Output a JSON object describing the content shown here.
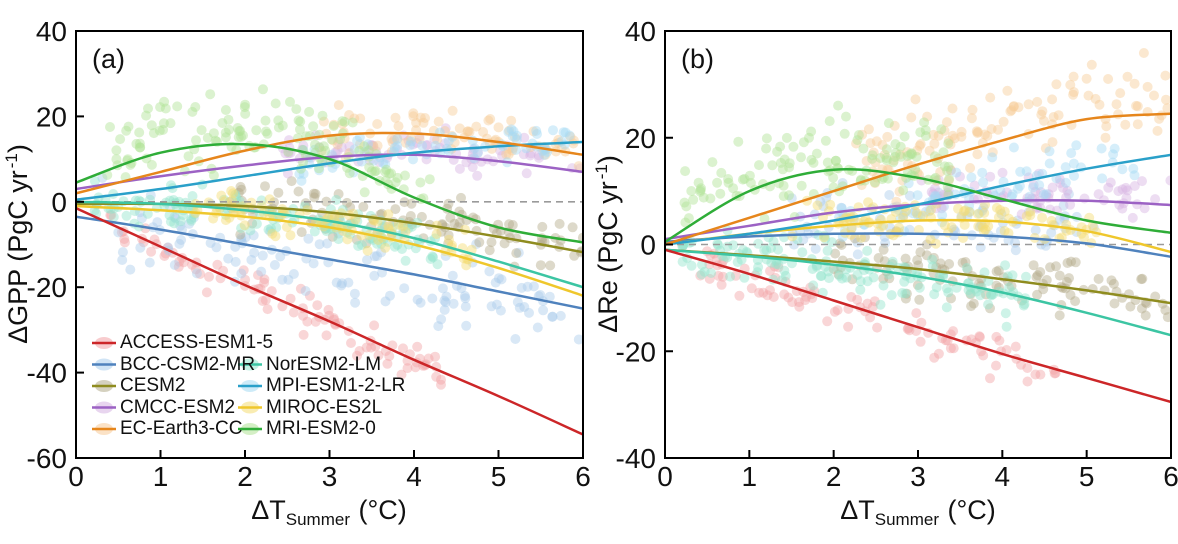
{
  "figure": {
    "background": "#ffffff",
    "axis_color": "#000000",
    "zero_line_color": "#9a9a9a",
    "text_color": "#111111"
  },
  "legend": {
    "items": [
      {
        "label": "ACCESS-ESM1-5",
        "series": 0,
        "col": 0,
        "row": 0
      },
      {
        "label": "BCC-CSM2-MR",
        "series": 1,
        "col": 0,
        "row": 1
      },
      {
        "label": "CESM2",
        "series": 2,
        "col": 0,
        "row": 2
      },
      {
        "label": "CMCC-ESM2",
        "series": 3,
        "col": 0,
        "row": 3
      },
      {
        "label": "EC-Earth3-CC",
        "series": 4,
        "col": 0,
        "row": 4
      },
      {
        "label": "NorESM2-LM",
        "series": 5,
        "col": 1,
        "row": 1
      },
      {
        "label": "MPI-ESM1-2-LR",
        "series": 6,
        "col": 1,
        "row": 2
      },
      {
        "label": "MIROC-ES2L",
        "series": 7,
        "col": 1,
        "row": 3
      },
      {
        "label": "MRI-ESM2-0",
        "series": 8,
        "col": 1,
        "row": 4
      }
    ]
  },
  "chart_data": [
    {
      "type": "scatter",
      "panel_label": "(a)",
      "ylabel": {
        "pre": "ΔGPP (PgC yr",
        "sup": "-1",
        "post": ")"
      },
      "xlabel": {
        "pre": "ΔT",
        "sub": "Summer",
        "post": " (°C)"
      },
      "xlim": [
        0,
        6
      ],
      "ylim": [
        -60,
        40
      ],
      "x_fit": [
        0,
        1,
        2,
        3,
        4,
        5,
        6
      ],
      "xtick_labels": [
        "0",
        "1",
        "2",
        "3",
        "4",
        "5",
        "6"
      ],
      "ytick_labels": [
        "40",
        "20",
        "0",
        "-20",
        "-40",
        "-60"
      ],
      "zero_line": true,
      "series": [
        {
          "name": "ACCESS-ESM1-5",
          "line_color": "#cc2628",
          "dot_color": "#f2a3a6",
          "fit_y": [
            -1.5,
            -10.5,
            -19.5,
            -28,
            -37,
            -45.5,
            -54.5
          ],
          "scatter": {
            "x_min": 0.4,
            "x_max": 4.4,
            "n": 95,
            "spread": 2.2,
            "offset": -0.5
          }
        },
        {
          "name": "BCC-CSM2-MR",
          "line_color": "#4f82bd",
          "dot_color": "#aacdec",
          "fit_y": [
            -3.5,
            -6.5,
            -10,
            -13.5,
            -17,
            -21,
            -25
          ],
          "scatter": {
            "x_min": 0.3,
            "x_max": 6,
            "n": 125,
            "spread": 4.6,
            "offset": -1
          }
        },
        {
          "name": "CESM2",
          "line_color": "#8f8c1f",
          "dot_color": "#b3ab8a",
          "fit_y": [
            -0.5,
            -0.5,
            -1,
            -2.5,
            -5,
            -8.2,
            -11.8
          ],
          "scatter": {
            "x_min": 1.8,
            "x_max": 6,
            "n": 110,
            "spread": 3,
            "offset": 0.5
          }
        },
        {
          "name": "CMCC-ESM2",
          "line_color": "#9c62c4",
          "dot_color": "#d6b3e2",
          "fit_y": [
            3,
            6,
            8.5,
            10.5,
            11,
            9.5,
            7
          ],
          "scatter": {
            "x_min": 2.4,
            "x_max": 6,
            "n": 75,
            "spread": 2.2,
            "offset": 1.5
          }
        },
        {
          "name": "EC-Earth3-CC",
          "line_color": "#e6861c",
          "dot_color": "#f7cb97",
          "fit_y": [
            2,
            7,
            12,
            15.5,
            16,
            14,
            11
          ],
          "scatter": {
            "x_min": 2.9,
            "x_max": 6,
            "n": 85,
            "spread": 2.8,
            "offset": 1
          }
        },
        {
          "name": "NorESM2-LM",
          "line_color": "#3cc5a3",
          "dot_color": "#93e5cd",
          "fit_y": [
            0,
            -0.5,
            -2,
            -4.5,
            -8.5,
            -14,
            -20
          ],
          "scatter": {
            "x_min": 0.2,
            "x_max": 4.3,
            "n": 140,
            "spread": 2.4,
            "offset": -0.5
          }
        },
        {
          "name": "MPI-ESM1-2-LR",
          "line_color": "#2aa0c9",
          "dot_color": "#a5daf3",
          "fit_y": [
            0.5,
            3,
            6,
            9,
            11.5,
            13,
            14
          ],
          "scatter": {
            "x_min": 2.6,
            "x_max": 6,
            "n": 70,
            "spread": 2.4,
            "offset": 1
          }
        },
        {
          "name": "MIROC-ES2L",
          "line_color": "#efc72c",
          "dot_color": "#f4dc72",
          "fit_y": [
            -1,
            -2,
            -3.5,
            -6,
            -10,
            -15.5,
            -22
          ],
          "scatter": {
            "x_min": 1.4,
            "x_max": 4.7,
            "n": 90,
            "spread": 2.2,
            "offset": 1.5
          }
        },
        {
          "name": "MRI-ESM2-0",
          "line_color": "#2fad38",
          "dot_color": "#b0e295",
          "fit_y": [
            4.5,
            11.5,
            13.5,
            10,
            1,
            -6,
            -9.5
          ],
          "scatter": {
            "x_min": 0.3,
            "x_max": 4.2,
            "n": 140,
            "spread": 4.2,
            "offset": 3.5
          }
        }
      ]
    },
    {
      "type": "scatter",
      "panel_label": "(b)",
      "ylabel": {
        "pre": "ΔRe (PgC yr",
        "sup": "-1",
        "post": ")"
      },
      "xlabel": {
        "pre": "ΔT",
        "sub": "Summer",
        "post": " (°C)"
      },
      "xlim": [
        0,
        6
      ],
      "ylim": [
        -40,
        40
      ],
      "x_fit": [
        0,
        1,
        2,
        3,
        4,
        5,
        6
      ],
      "xtick_labels": [
        "0",
        "1",
        "2",
        "3",
        "4",
        "5",
        "6"
      ],
      "ytick_labels": [
        "40",
        "20",
        "0",
        "-20",
        "-40"
      ],
      "zero_line": true,
      "series": [
        {
          "name": "ACCESS-ESM1-5",
          "line_color": "#cc2628",
          "dot_color": "#f2a3a6",
          "fit_y": [
            -1,
            -5.5,
            -10.5,
            -15.5,
            -20.5,
            -25,
            -29.5
          ],
          "scatter": {
            "x_min": 0.4,
            "x_max": 4.7,
            "n": 95,
            "spread": 2,
            "offset": -0.5
          }
        },
        {
          "name": "BCC-CSM2-MR",
          "line_color": "#4f82bd",
          "dot_color": "#aacdec",
          "fit_y": [
            0.5,
            1.5,
            2,
            2,
            1.5,
            0.2,
            -2.3
          ],
          "scatter": {
            "x_min": 1.5,
            "x_max": 5.2,
            "n": 80,
            "spread": 3,
            "offset": 3
          }
        },
        {
          "name": "CESM2",
          "line_color": "#8f8c1f",
          "dot_color": "#b3ab8a",
          "fit_y": [
            -1,
            -2,
            -3.2,
            -4.6,
            -6.5,
            -8.6,
            -11
          ],
          "scatter": {
            "x_min": 2,
            "x_max": 6,
            "n": 110,
            "spread": 2.6,
            "offset": 0.5
          }
        },
        {
          "name": "CMCC-ESM2",
          "line_color": "#9c62c4",
          "dot_color": "#d6b3e2",
          "fit_y": [
            1,
            3.5,
            6,
            7.5,
            8.2,
            8.2,
            7.4
          ],
          "scatter": {
            "x_min": 3,
            "x_max": 6,
            "n": 70,
            "spread": 2.2,
            "offset": 1.5
          }
        },
        {
          "name": "EC-Earth3-CC",
          "line_color": "#e6861c",
          "dot_color": "#f7cb97",
          "fit_y": [
            0,
            5,
            10,
            15,
            19.5,
            23.5,
            24.5
          ],
          "scatter": {
            "x_min": 2.2,
            "x_max": 6,
            "n": 120,
            "spread": 4,
            "offset": 3
          }
        },
        {
          "name": "NorESM2-LM",
          "line_color": "#3cc5a3",
          "dot_color": "#93e5cd",
          "fit_y": [
            -1,
            -2.2,
            -3.8,
            -6,
            -9,
            -12.8,
            -17
          ],
          "scatter": {
            "x_min": 0.2,
            "x_max": 4.3,
            "n": 150,
            "spread": 2.4,
            "offset": -0.5
          }
        },
        {
          "name": "MPI-ESM1-2-LR",
          "line_color": "#2aa0c9",
          "dot_color": "#a5daf3",
          "fit_y": [
            0,
            2,
            4.5,
            7.5,
            11,
            14.2,
            16.8
          ],
          "scatter": {
            "x_min": 2,
            "x_max": 5.6,
            "n": 75,
            "spread": 2.6,
            "offset": 0.5
          }
        },
        {
          "name": "MIROC-ES2L",
          "line_color": "#efc72c",
          "dot_color": "#f4dc72",
          "fit_y": [
            0,
            2,
            3.5,
            4.5,
            4.3,
            2.5,
            -1.4
          ],
          "scatter": {
            "x_min": 1.5,
            "x_max": 5.2,
            "n": 100,
            "spread": 2,
            "offset": 0.5
          }
        },
        {
          "name": "MRI-ESM2-0",
          "line_color": "#2fad38",
          "dot_color": "#b0e295",
          "fit_y": [
            0.5,
            10,
            14,
            12.5,
            8.5,
            4.5,
            2.2
          ],
          "scatter": {
            "x_min": 0.2,
            "x_max": 3.4,
            "n": 130,
            "spread": 4,
            "offset": 2.5
          }
        }
      ]
    }
  ]
}
